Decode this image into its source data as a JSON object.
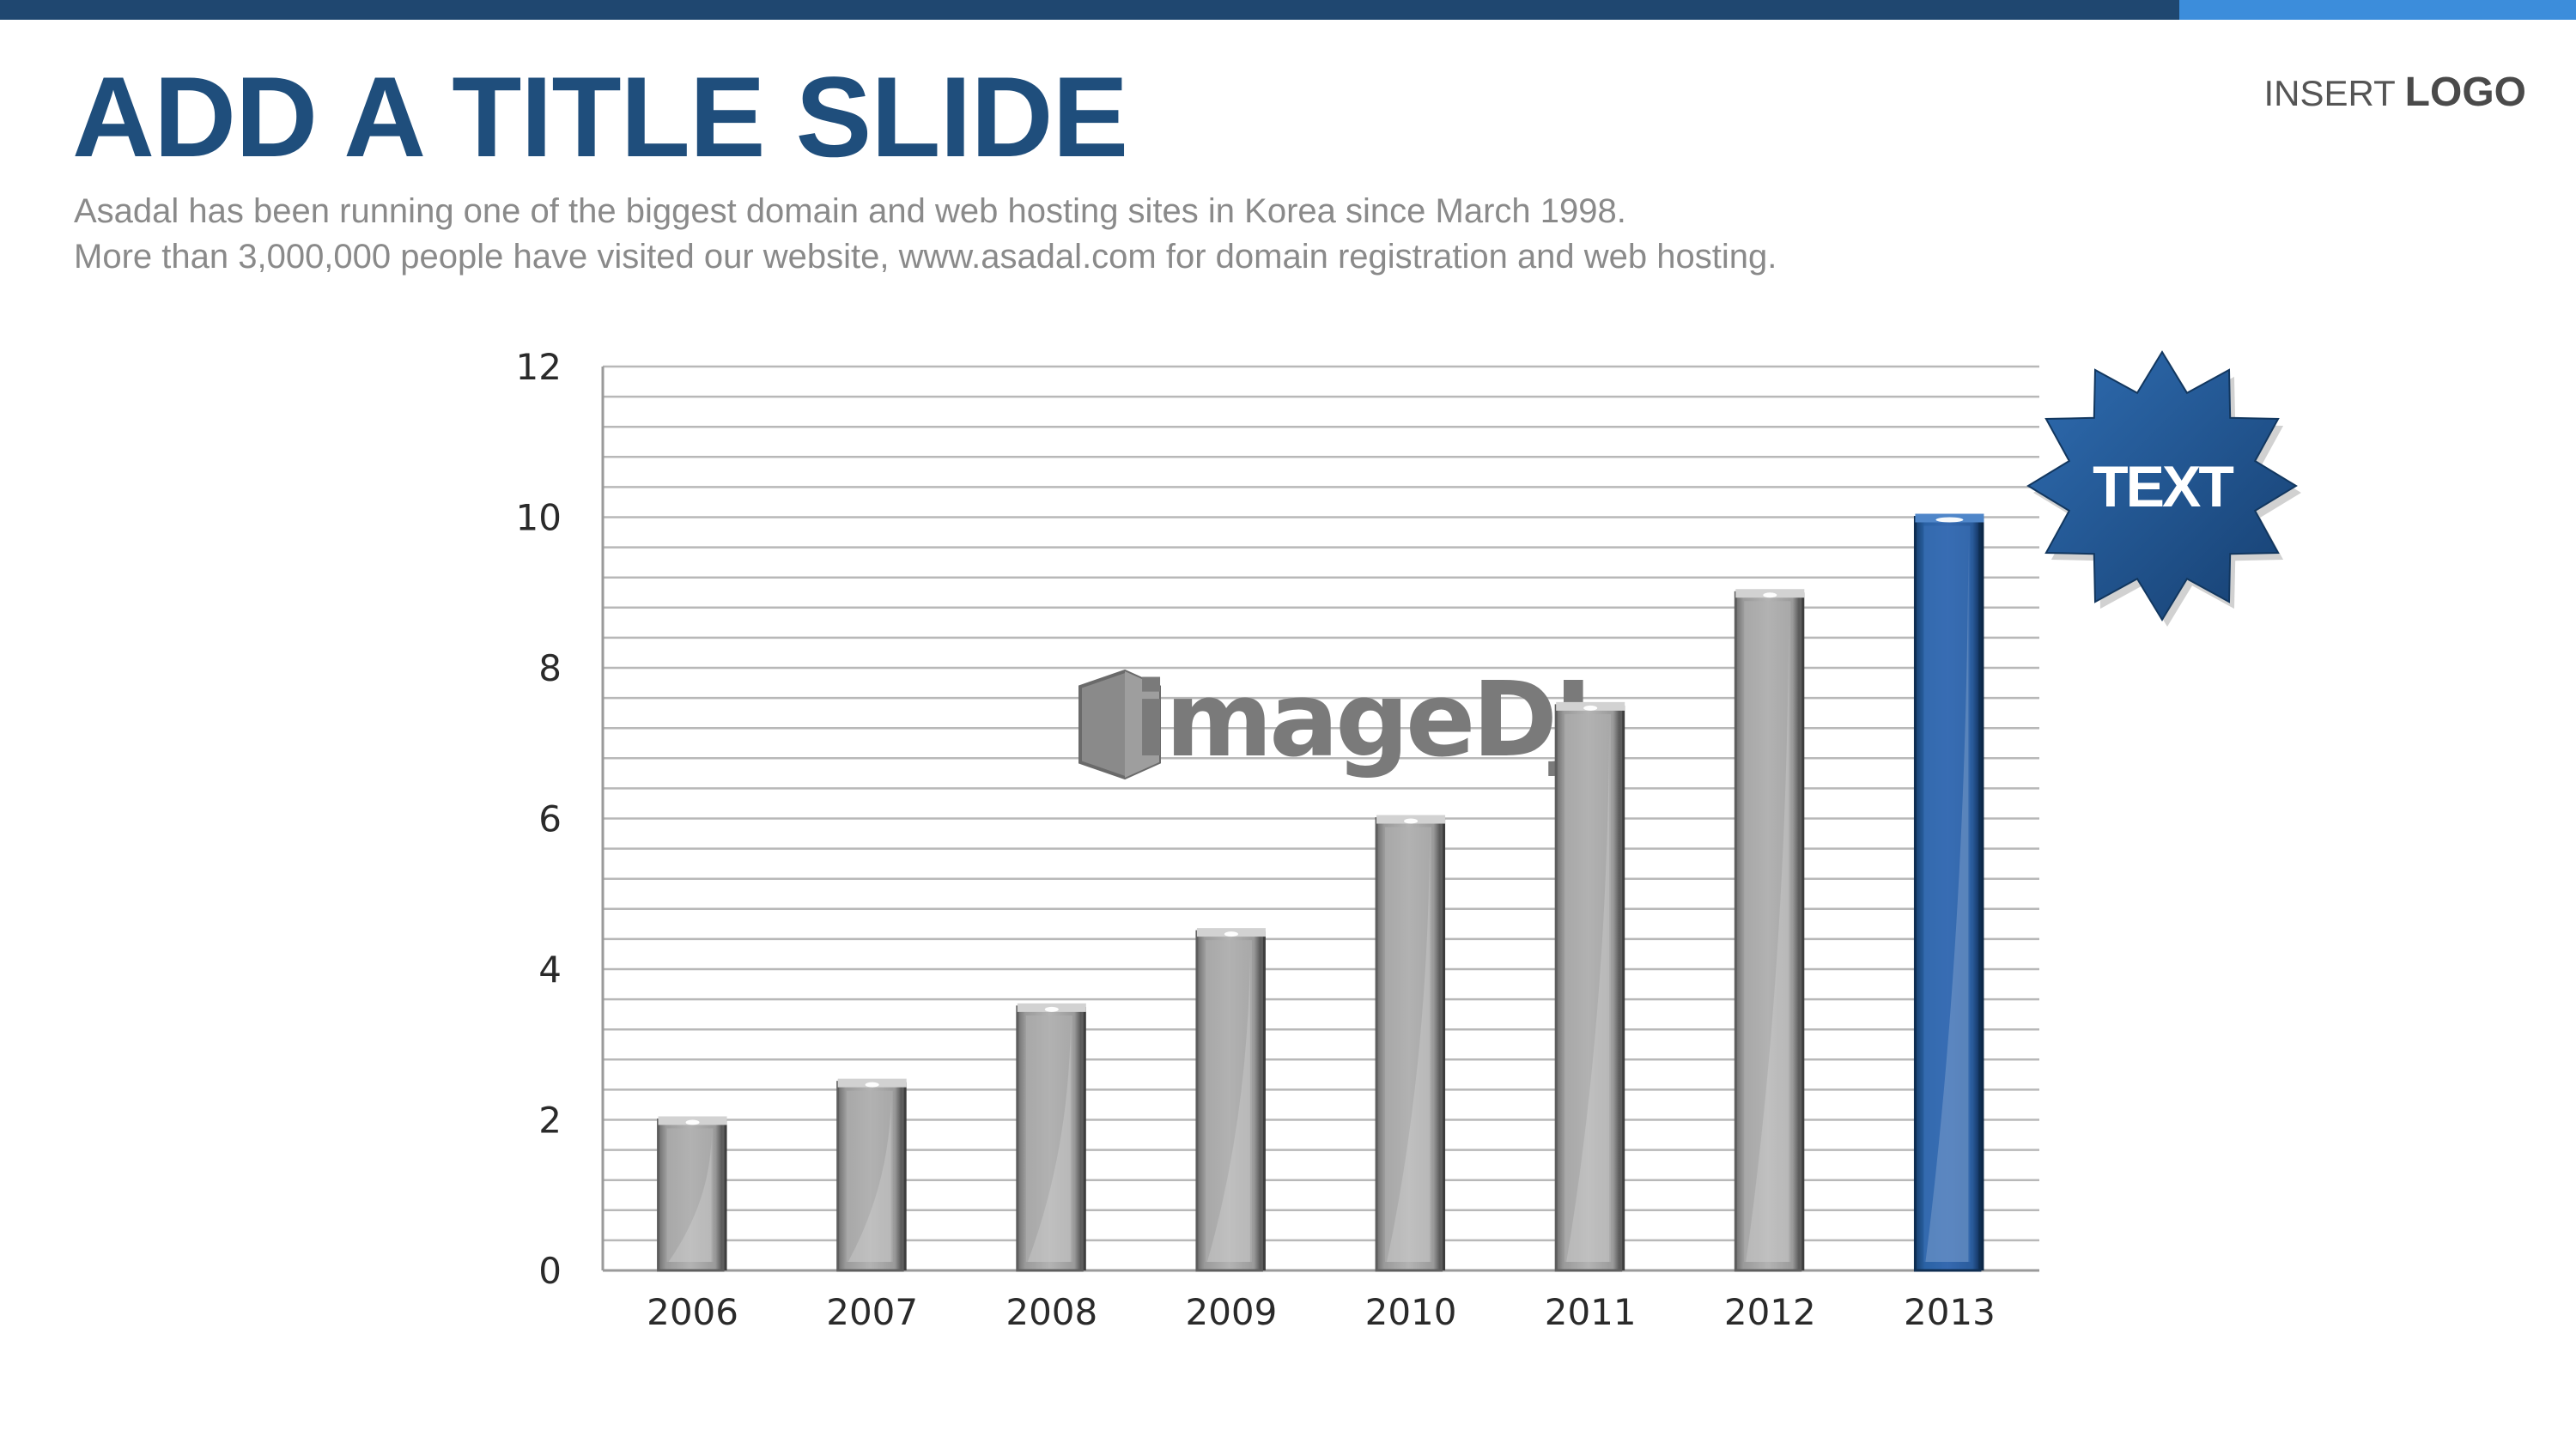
{
  "slide": {
    "title": "ADD A TITLE SLIDE",
    "logo_prefix": "INSERT",
    "logo_strong": "LOGO",
    "subtitle_lines": [
      "Asadal has been running one of the biggest domain and web hosting sites in Korea since March 1998.",
      "More than 3,000,000 people have visited our website,  www.asadal.com for domain registration and web hosting."
    ],
    "badge_text": "TEXT",
    "watermark": "imageDJ"
  },
  "colors": {
    "topbar_dark": "#1f4770",
    "topbar_light": "#3c8ddb",
    "title": "#1f4e7c",
    "bar_gray": "#a9a9a9",
    "bar_highlight": "#2a62a5",
    "badge": "#1f5795",
    "gridline": "#b8b8b8"
  },
  "chart_data": {
    "type": "bar",
    "categories": [
      "2006",
      "2007",
      "2008",
      "2009",
      "2010",
      "2011",
      "2012",
      "2013"
    ],
    "values": [
      2,
      2.5,
      3.5,
      4.5,
      6,
      7.5,
      9,
      10
    ],
    "ylim": [
      0,
      12
    ],
    "yticks": [
      0,
      2,
      4,
      6,
      8,
      10,
      12
    ],
    "minor_gridline_step": 0.4,
    "highlighted_category": "2013",
    "grid": true,
    "legend": "none",
    "title": "",
    "xlabel": "",
    "ylabel": ""
  }
}
